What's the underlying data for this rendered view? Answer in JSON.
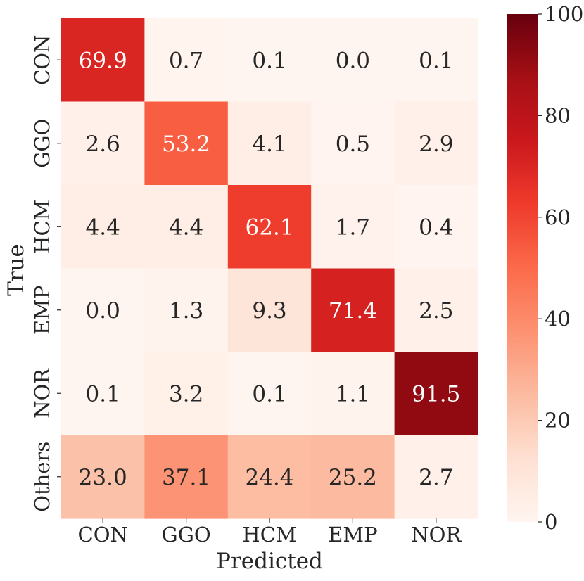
{
  "chart_data": {
    "type": "heatmap",
    "title": "",
    "xlabel": "Predicted",
    "ylabel": "True",
    "x_categories": [
      "CON",
      "GGO",
      "HCM",
      "EMP",
      "NOR"
    ],
    "y_categories": [
      "CON",
      "GGO",
      "HCM",
      "EMP",
      "NOR",
      "Others"
    ],
    "values": [
      [
        69.9,
        0.7,
        0.1,
        0.0,
        0.1
      ],
      [
        2.6,
        53.2,
        4.1,
        0.5,
        2.9
      ],
      [
        4.4,
        4.4,
        62.1,
        1.7,
        0.4
      ],
      [
        0.0,
        1.3,
        9.3,
        71.4,
        2.5
      ],
      [
        0.1,
        3.2,
        0.1,
        1.1,
        91.5
      ],
      [
        23.0,
        37.1,
        24.4,
        25.2,
        2.7
      ]
    ],
    "value_range": [
      0,
      100
    ],
    "colormap": "Reds",
    "colorbar": {
      "ticks": [
        0,
        20,
        40,
        60,
        80,
        100
      ],
      "tick_labels": [
        "0",
        "20",
        "40",
        "60",
        "80",
        "100"
      ]
    },
    "annotation_colors": {
      "dark_text": "#262626",
      "light_text": "#ffffff"
    }
  }
}
